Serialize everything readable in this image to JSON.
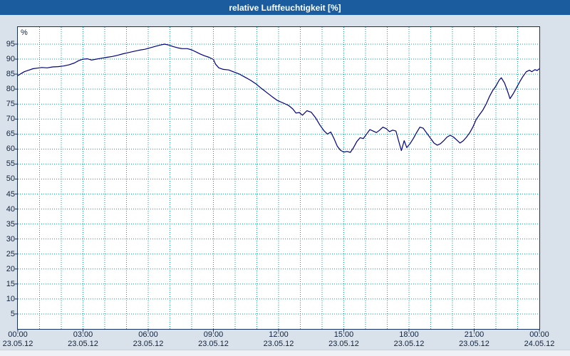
{
  "window": {
    "title": "relative Luftfeuchtigkeit [%]"
  },
  "colors": {
    "titlebar_bg": "#1b5c9e",
    "titlebar_text": "#ffffff",
    "window_bg": "#d9e2eb",
    "plot_bg": "#ffffff",
    "plot_border": "#16325c",
    "grid": "#00a0a0",
    "series_line": "#000080",
    "axis_text": "#10223c"
  },
  "chart_data": {
    "type": "line",
    "title": "relative Luftfeuchtigkeit [%]",
    "ylabel": "%",
    "xlabel": "",
    "legend_position": "none",
    "grid": "dotted; horizontal every 5 %, vertical every hour",
    "ylim": [
      0,
      100.7
    ],
    "x_range_hours": [
      0,
      24
    ],
    "y_ticks": [
      95,
      90,
      85,
      80,
      75,
      70,
      65,
      60,
      55,
      50,
      45,
      40,
      35,
      30,
      25,
      20,
      15,
      10,
      5
    ],
    "x_ticks": [
      {
        "hour": 0,
        "time": "00:00",
        "date": "23.05.12"
      },
      {
        "hour": 3,
        "time": "03:00",
        "date": "23.05.12"
      },
      {
        "hour": 6,
        "time": "06:00",
        "date": "23.05.12"
      },
      {
        "hour": 9,
        "time": "09:00",
        "date": "23.05.12"
      },
      {
        "hour": 12,
        "time": "12:00",
        "date": "23.05.12"
      },
      {
        "hour": 15,
        "time": "15:00",
        "date": "23.05.12"
      },
      {
        "hour": 18,
        "time": "18:00",
        "date": "23.05.12"
      },
      {
        "hour": 21,
        "time": "21:00",
        "date": "23.05.12"
      },
      {
        "hour": 24,
        "time": "00:00",
        "date": "24.05.12"
      }
    ],
    "series": [
      {
        "name": "relative Luftfeuchtigkeit",
        "unit": "%",
        "points": [
          [
            0,
            84.5
          ],
          [
            0.15,
            85.2
          ],
          [
            0.3,
            85.8
          ],
          [
            0.5,
            86.3
          ],
          [
            0.7,
            86.8
          ],
          [
            0.9,
            87
          ],
          [
            1.1,
            87.2
          ],
          [
            1.35,
            87.1
          ],
          [
            1.6,
            87.4
          ],
          [
            1.85,
            87.5
          ],
          [
            2.1,
            87.7
          ],
          [
            2.35,
            88.1
          ],
          [
            2.6,
            88.7
          ],
          [
            2.8,
            89.5
          ],
          [
            3.0,
            90
          ],
          [
            3.2,
            90.1
          ],
          [
            3.4,
            89.7
          ],
          [
            3.6,
            90
          ],
          [
            3.85,
            90.3
          ],
          [
            4.1,
            90.6
          ],
          [
            4.35,
            90.9
          ],
          [
            4.6,
            91.3
          ],
          [
            4.85,
            91.8
          ],
          [
            5.1,
            92.2
          ],
          [
            5.35,
            92.6
          ],
          [
            5.6,
            93
          ],
          [
            5.85,
            93.3
          ],
          [
            6.1,
            93.8
          ],
          [
            6.35,
            94.3
          ],
          [
            6.55,
            94.7
          ],
          [
            6.75,
            95
          ],
          [
            6.95,
            94.7
          ],
          [
            7.15,
            94.2
          ],
          [
            7.35,
            93.8
          ],
          [
            7.55,
            93.5
          ],
          [
            7.8,
            93.5
          ],
          [
            8.0,
            93.1
          ],
          [
            8.2,
            92.4
          ],
          [
            8.4,
            91.7
          ],
          [
            8.6,
            91.1
          ],
          [
            8.8,
            90.6
          ],
          [
            9.0,
            89.9
          ],
          [
            9.1,
            88.3
          ],
          [
            9.25,
            87.1
          ],
          [
            9.45,
            86.6
          ],
          [
            9.7,
            86.4
          ],
          [
            9.95,
            85.7
          ],
          [
            10.2,
            85
          ],
          [
            10.45,
            84
          ],
          [
            10.7,
            83
          ],
          [
            10.95,
            81.8
          ],
          [
            11.2,
            80.3
          ],
          [
            11.45,
            78.9
          ],
          [
            11.7,
            77.5
          ],
          [
            11.95,
            76.2
          ],
          [
            12.2,
            75.4
          ],
          [
            12.45,
            74.6
          ],
          [
            12.65,
            73.4
          ],
          [
            12.8,
            72
          ],
          [
            12.95,
            72.2
          ],
          [
            13.1,
            71.3
          ],
          [
            13.3,
            72.8
          ],
          [
            13.5,
            72.3
          ],
          [
            13.7,
            70.5
          ],
          [
            13.9,
            68
          ],
          [
            14.1,
            66
          ],
          [
            14.25,
            65
          ],
          [
            14.4,
            65.7
          ],
          [
            14.55,
            63.5
          ],
          [
            14.7,
            61
          ],
          [
            14.85,
            59.6
          ],
          [
            15.0,
            59
          ],
          [
            15.15,
            59.2
          ],
          [
            15.3,
            58.9
          ],
          [
            15.45,
            60.5
          ],
          [
            15.6,
            62.5
          ],
          [
            15.75,
            63.8
          ],
          [
            15.9,
            63.5
          ],
          [
            16.05,
            65
          ],
          [
            16.2,
            66.5
          ],
          [
            16.35,
            66
          ],
          [
            16.5,
            65.5
          ],
          [
            16.65,
            66.3
          ],
          [
            16.8,
            67.3
          ],
          [
            16.95,
            66.8
          ],
          [
            17.1,
            65.8
          ],
          [
            17.25,
            66.3
          ],
          [
            17.4,
            66
          ],
          [
            17.55,
            62
          ],
          [
            17.65,
            59.5
          ],
          [
            17.78,
            62.8
          ],
          [
            17.9,
            60.5
          ],
          [
            18.05,
            61.8
          ],
          [
            18.2,
            63.5
          ],
          [
            18.35,
            65.5
          ],
          [
            18.5,
            67.3
          ],
          [
            18.65,
            67
          ],
          [
            18.8,
            65.5
          ],
          [
            18.95,
            64
          ],
          [
            19.15,
            62
          ],
          [
            19.3,
            61.3
          ],
          [
            19.45,
            61.8
          ],
          [
            19.6,
            62.8
          ],
          [
            19.75,
            64
          ],
          [
            19.9,
            64.6
          ],
          [
            20.05,
            64
          ],
          [
            20.2,
            63
          ],
          [
            20.35,
            62
          ],
          [
            20.5,
            62.8
          ],
          [
            20.65,
            64
          ],
          [
            20.8,
            65.5
          ],
          [
            20.95,
            67.5
          ],
          [
            21.1,
            70
          ],
          [
            21.25,
            71.5
          ],
          [
            21.4,
            73
          ],
          [
            21.55,
            75
          ],
          [
            21.7,
            77.5
          ],
          [
            21.85,
            79.5
          ],
          [
            22.0,
            81
          ],
          [
            22.15,
            83
          ],
          [
            22.25,
            83.8
          ],
          [
            22.4,
            82
          ],
          [
            22.55,
            79
          ],
          [
            22.65,
            76.8
          ],
          [
            22.8,
            78.5
          ],
          [
            22.95,
            80.5
          ],
          [
            23.1,
            82.5
          ],
          [
            23.25,
            84.3
          ],
          [
            23.4,
            85.8
          ],
          [
            23.55,
            86.3
          ],
          [
            23.65,
            85.8
          ],
          [
            23.8,
            86.5
          ],
          [
            23.9,
            86.2
          ],
          [
            24.0,
            86.8
          ]
        ]
      }
    ]
  }
}
